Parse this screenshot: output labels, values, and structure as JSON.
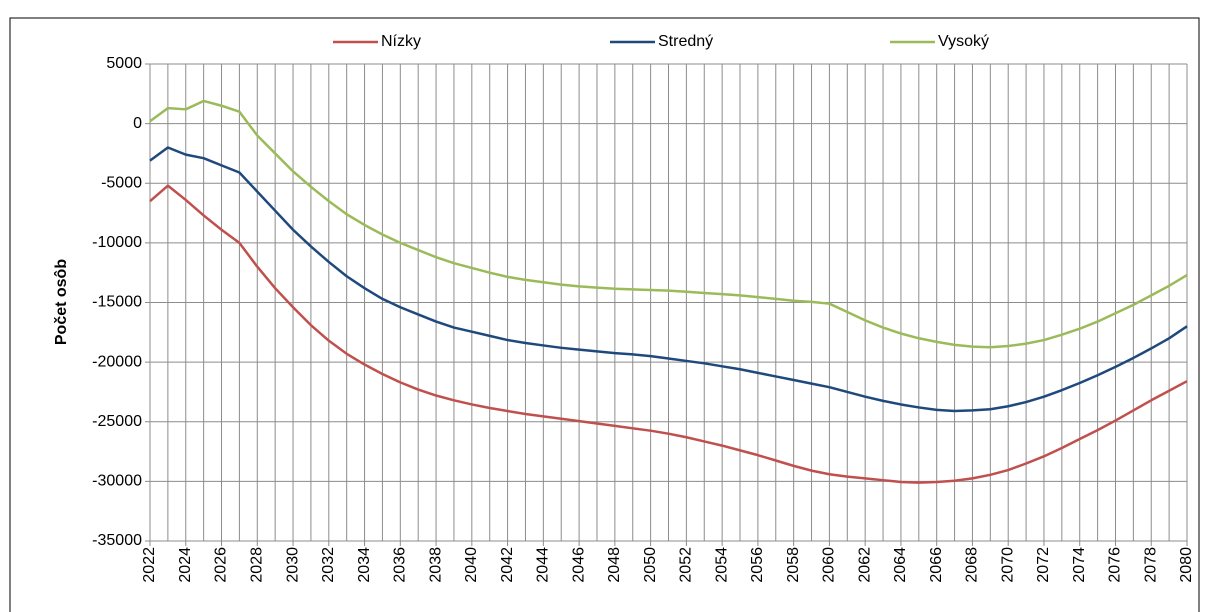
{
  "chart_data": {
    "type": "line",
    "y_label": "Počet osôb",
    "x": [
      2022,
      2023,
      2024,
      2025,
      2026,
      2027,
      2028,
      2029,
      2030,
      2031,
      2032,
      2033,
      2034,
      2035,
      2036,
      2037,
      2038,
      2039,
      2040,
      2041,
      2042,
      2043,
      2044,
      2045,
      2046,
      2047,
      2048,
      2049,
      2050,
      2051,
      2052,
      2053,
      2054,
      2055,
      2056,
      2057,
      2058,
      2059,
      2060,
      2061,
      2062,
      2063,
      2064,
      2065,
      2066,
      2067,
      2068,
      2069,
      2070,
      2071,
      2072,
      2073,
      2074,
      2075,
      2076,
      2077,
      2078,
      2079,
      2080
    ],
    "series": [
      {
        "name": "Nízky",
        "color": "#c0504d",
        "values": [
          -6500,
          -5200,
          -6400,
          -7700,
          -8900,
          -10000,
          -12000,
          -13800,
          -15400,
          -16900,
          -18200,
          -19300,
          -20200,
          -21000,
          -21700,
          -22300,
          -22800,
          -23200,
          -23550,
          -23850,
          -24100,
          -24350,
          -24550,
          -24750,
          -24950,
          -25150,
          -25350,
          -25550,
          -25750,
          -26000,
          -26300,
          -26650,
          -27000,
          -27400,
          -27800,
          -28250,
          -28700,
          -29100,
          -29400,
          -29600,
          -29750,
          -29900,
          -30050,
          -30100,
          -30050,
          -29950,
          -29750,
          -29450,
          -29050,
          -28500,
          -27900,
          -27200,
          -26450,
          -25700,
          -24900,
          -24050,
          -23200,
          -22400,
          -21600
        ]
      },
      {
        "name": "Stredný",
        "color": "#1f497d",
        "values": [
          -3100,
          -2000,
          -2600,
          -2900,
          -3500,
          -4100,
          -5700,
          -7300,
          -8900,
          -10300,
          -11600,
          -12800,
          -13800,
          -14700,
          -15400,
          -16000,
          -16600,
          -17100,
          -17450,
          -17800,
          -18150,
          -18400,
          -18600,
          -18800,
          -18950,
          -19100,
          -19250,
          -19350,
          -19500,
          -19700,
          -19900,
          -20100,
          -20350,
          -20600,
          -20900,
          -21200,
          -21500,
          -21800,
          -22100,
          -22500,
          -22900,
          -23250,
          -23550,
          -23800,
          -24000,
          -24100,
          -24050,
          -23950,
          -23700,
          -23350,
          -22900,
          -22350,
          -21750,
          -21100,
          -20400,
          -19650,
          -18850,
          -18000,
          -17000
        ]
      },
      {
        "name": "Vysoký",
        "color": "#9bbb59",
        "values": [
          200,
          1300,
          1200,
          1900,
          1500,
          1000,
          -1000,
          -2500,
          -4000,
          -5300,
          -6500,
          -7600,
          -8500,
          -9300,
          -10000,
          -10600,
          -11200,
          -11700,
          -12100,
          -12500,
          -12850,
          -13100,
          -13300,
          -13500,
          -13650,
          -13750,
          -13850,
          -13900,
          -13950,
          -14000,
          -14100,
          -14200,
          -14300,
          -14400,
          -14550,
          -14700,
          -14850,
          -14950,
          -15100,
          -15800,
          -16500,
          -17100,
          -17600,
          -18000,
          -18300,
          -18550,
          -18700,
          -18750,
          -18650,
          -18450,
          -18150,
          -17700,
          -17200,
          -16600,
          -15900,
          -15200,
          -14400,
          -13600,
          -12700
        ]
      }
    ],
    "xlim": [
      2022,
      2080
    ],
    "xticks": [
      2022,
      2024,
      2026,
      2028,
      2030,
      2032,
      2034,
      2036,
      2038,
      2040,
      2042,
      2044,
      2046,
      2048,
      2050,
      2052,
      2054,
      2056,
      2058,
      2060,
      2062,
      2064,
      2066,
      2068,
      2070,
      2072,
      2074,
      2076,
      2078,
      2080
    ],
    "ylim": [
      -35000,
      5000
    ],
    "yticks": [
      -35000,
      -30000,
      -25000,
      -20000,
      -15000,
      -10000,
      -5000,
      0,
      5000
    ],
    "grid": true
  }
}
